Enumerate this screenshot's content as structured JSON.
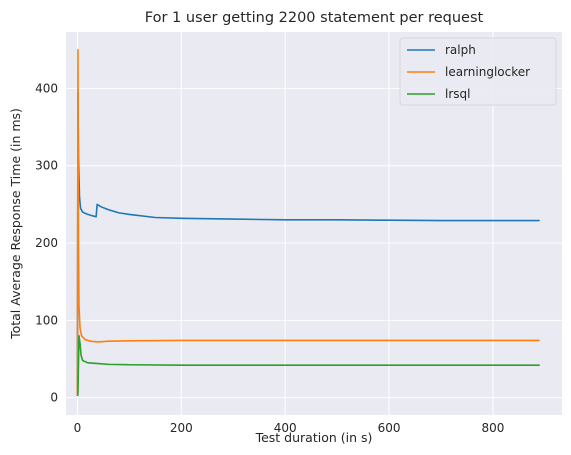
{
  "chart_data": {
    "type": "line",
    "title": "For 1 user getting 2200 statement per request",
    "xlabel": "Test duration (in s)",
    "ylabel": "Total Average Response Time (in ms)",
    "xlim": [
      -22,
      933
    ],
    "ylim": [
      -22.5,
      473
    ],
    "xticks": [
      0,
      200,
      400,
      600,
      800
    ],
    "yticks": [
      0,
      100,
      200,
      300,
      400
    ],
    "grid": true,
    "legend": "top-right",
    "series": [
      {
        "name": "ralph",
        "color": "#1f77b4",
        "points": [
          [
            0,
            5
          ],
          [
            1,
            395
          ],
          [
            2,
            310
          ],
          [
            4,
            260
          ],
          [
            6,
            245
          ],
          [
            10,
            240
          ],
          [
            20,
            237
          ],
          [
            30,
            235
          ],
          [
            36,
            234
          ],
          [
            38,
            250
          ],
          [
            45,
            247
          ],
          [
            60,
            243
          ],
          [
            80,
            239
          ],
          [
            100,
            237
          ],
          [
            150,
            233
          ],
          [
            200,
            232
          ],
          [
            300,
            231
          ],
          [
            400,
            230
          ],
          [
            500,
            230
          ],
          [
            600,
            229.5
          ],
          [
            700,
            229
          ],
          [
            800,
            229
          ],
          [
            890,
            229
          ]
        ]
      },
      {
        "name": "learninglocker",
        "color": "#ff7f0e",
        "points": [
          [
            0,
            2
          ],
          [
            1,
            450
          ],
          [
            2,
            200
          ],
          [
            3,
            120
          ],
          [
            5,
            90
          ],
          [
            8,
            80
          ],
          [
            15,
            75
          ],
          [
            25,
            73
          ],
          [
            40,
            72
          ],
          [
            60,
            73
          ],
          [
            100,
            73.5
          ],
          [
            200,
            74
          ],
          [
            400,
            74
          ],
          [
            600,
            74
          ],
          [
            800,
            74
          ],
          [
            890,
            74
          ]
        ]
      },
      {
        "name": "lrsql",
        "color": "#2ca02c",
        "points": [
          [
            0,
            2
          ],
          [
            1,
            5
          ],
          [
            3,
            80
          ],
          [
            5,
            70
          ],
          [
            7,
            55
          ],
          [
            10,
            48
          ],
          [
            20,
            45
          ],
          [
            40,
            44
          ],
          [
            60,
            43
          ],
          [
            100,
            42.5
          ],
          [
            200,
            42
          ],
          [
            400,
            42
          ],
          [
            600,
            42
          ],
          [
            800,
            42
          ],
          [
            890,
            42
          ]
        ]
      }
    ]
  }
}
